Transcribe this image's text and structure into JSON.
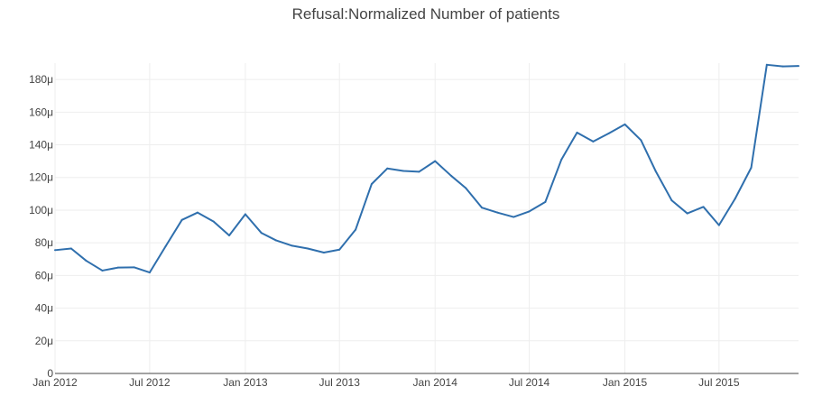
{
  "chart_data": {
    "type": "line",
    "title": "Refusal:Normalized Number of patients",
    "xlabel": "",
    "ylabel": "",
    "x_range": [
      "2012-01-01",
      "2015-12-01"
    ],
    "ylim": [
      0,
      0.00019
    ],
    "y_ticks": [
      {
        "value": 0,
        "label": "0"
      },
      {
        "value": 2e-05,
        "label": "20μ"
      },
      {
        "value": 4e-05,
        "label": "40μ"
      },
      {
        "value": 6e-05,
        "label": "60μ"
      },
      {
        "value": 8e-05,
        "label": "80μ"
      },
      {
        "value": 0.0001,
        "label": "100μ"
      },
      {
        "value": 0.00012,
        "label": "120μ"
      },
      {
        "value": 0.00014,
        "label": "140μ"
      },
      {
        "value": 0.00016,
        "label": "160μ"
      },
      {
        "value": 0.00018,
        "label": "180μ"
      }
    ],
    "x_ticks": [
      {
        "value": "2012-01-01",
        "label": "Jan 2012"
      },
      {
        "value": "2012-07-01",
        "label": "Jul 2012"
      },
      {
        "value": "2013-01-01",
        "label": "Jan 2013"
      },
      {
        "value": "2013-07-01",
        "label": "Jul 2013"
      },
      {
        "value": "2014-01-01",
        "label": "Jan 2014"
      },
      {
        "value": "2014-07-01",
        "label": "Jul 2014"
      },
      {
        "value": "2015-01-01",
        "label": "Jan 2015"
      },
      {
        "value": "2015-07-01",
        "label": "Jul 2015"
      }
    ],
    "grid": true,
    "legend": "none",
    "line_color": "#2f6fad",
    "series": [
      {
        "x": [
          "2012-01-01",
          "2012-02-01",
          "2012-03-01",
          "2012-04-01",
          "2012-05-01",
          "2012-06-01",
          "2012-07-01",
          "2012-08-01",
          "2012-09-01",
          "2012-10-01",
          "2012-11-01",
          "2012-12-01",
          "2013-01-01",
          "2013-02-01",
          "2013-03-01",
          "2013-04-01",
          "2013-05-01",
          "2013-06-01",
          "2013-07-01",
          "2013-08-01",
          "2013-09-01",
          "2013-10-01",
          "2013-11-01",
          "2013-12-01",
          "2014-01-01",
          "2014-02-01",
          "2014-03-01",
          "2014-04-01",
          "2014-05-01",
          "2014-06-01",
          "2014-07-01",
          "2014-08-01",
          "2014-09-01",
          "2014-10-01",
          "2014-11-01",
          "2014-12-01",
          "2015-01-01",
          "2015-02-01",
          "2015-03-01",
          "2015-04-01",
          "2015-05-01",
          "2015-06-01",
          "2015-07-01",
          "2015-08-01",
          "2015-09-01",
          "2015-10-01",
          "2015-11-01",
          "2015-12-01"
        ],
        "y": [
          7.55e-05,
          7.65e-05,
          6.9e-05,
          6.3e-05,
          6.48e-05,
          6.5e-05,
          6.18e-05,
          7.8e-05,
          9.4e-05,
          9.85e-05,
          9.3e-05,
          8.45e-05,
          9.75e-05,
          8.6e-05,
          8.15e-05,
          7.82e-05,
          7.65e-05,
          7.4e-05,
          7.58e-05,
          8.8e-05,
          0.000116,
          0.0001255,
          0.000124,
          0.0001235,
          0.00013,
          0.000121,
          0.0001135,
          0.0001015,
          9.85e-05,
          9.58e-05,
          9.92e-05,
          0.000105,
          0.000131,
          0.0001475,
          0.000142,
          0.000147,
          0.0001525,
          0.0001428,
          0.000124,
          0.000106,
          9.8e-05,
          0.000102,
          9.08e-05,
          0.000107,
          0.000126,
          0.000189,
          0.000188,
          0.0001883
        ]
      }
    ]
  }
}
